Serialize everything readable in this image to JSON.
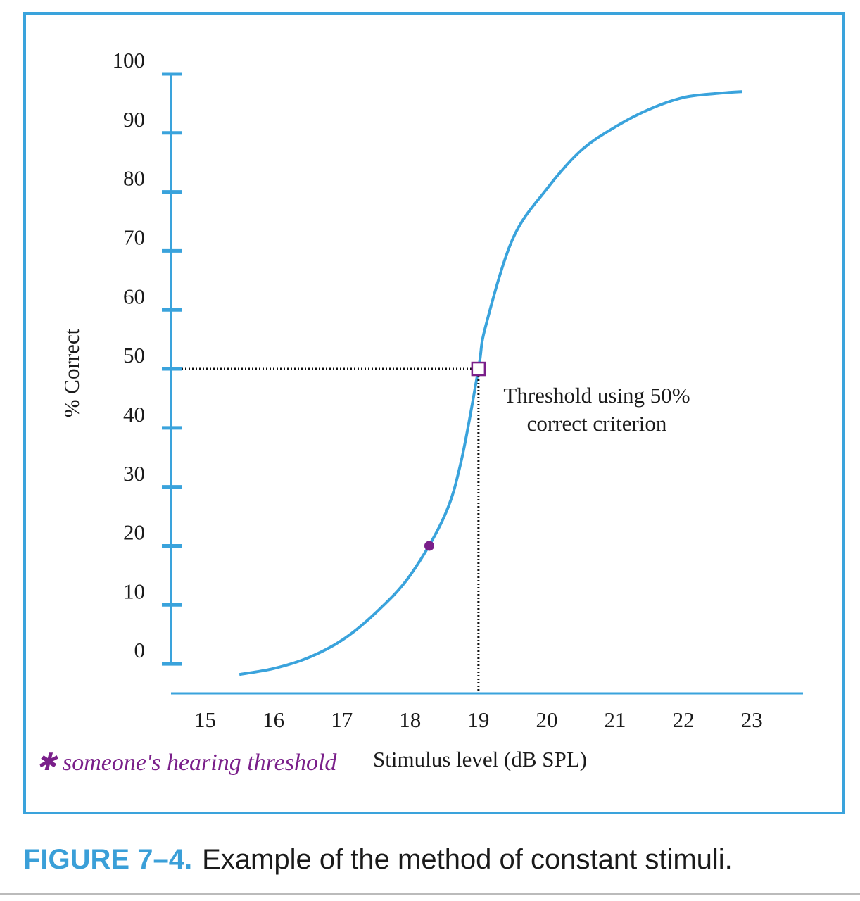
{
  "chart_data": {
    "type": "line",
    "x": [
      15.5,
      16,
      16.5,
      17,
      17.5,
      18,
      18.5,
      18.75,
      19,
      19.1,
      19.5,
      20,
      20.5,
      21,
      21.5,
      22,
      22.5,
      22.86
    ],
    "values": [
      -1.8,
      -0.8,
      1,
      4,
      8.7,
      15,
      25,
      34.5,
      50,
      57,
      72,
      80.5,
      87,
      91,
      94,
      96,
      96.7,
      97
    ],
    "color": "#3aa3dc",
    "xlim": [
      14.5,
      23.75
    ],
    "ylim": [
      -5,
      100
    ],
    "xticks": [
      15,
      16,
      17,
      18,
      19,
      20,
      21,
      22,
      23
    ],
    "yticks": [
      0,
      10,
      20,
      30,
      40,
      50,
      60,
      70,
      80,
      90,
      100
    ],
    "ylabel": "% Correct",
    "xlabel": "Stimulus level (dB SPL)",
    "threshold": {
      "x": 19,
      "y": 50
    },
    "marked_point": {
      "x": 18.28,
      "y": 20
    },
    "marker_color": "#7a1f8a",
    "annotation": [
      "Threshold using 50%",
      "correct criterion"
    ],
    "handwritten_note": "✱ someone's hearing threshold",
    "figure_label": "FIGURE 7–4.",
    "caption": "Example of the method of constant stimuli."
  }
}
